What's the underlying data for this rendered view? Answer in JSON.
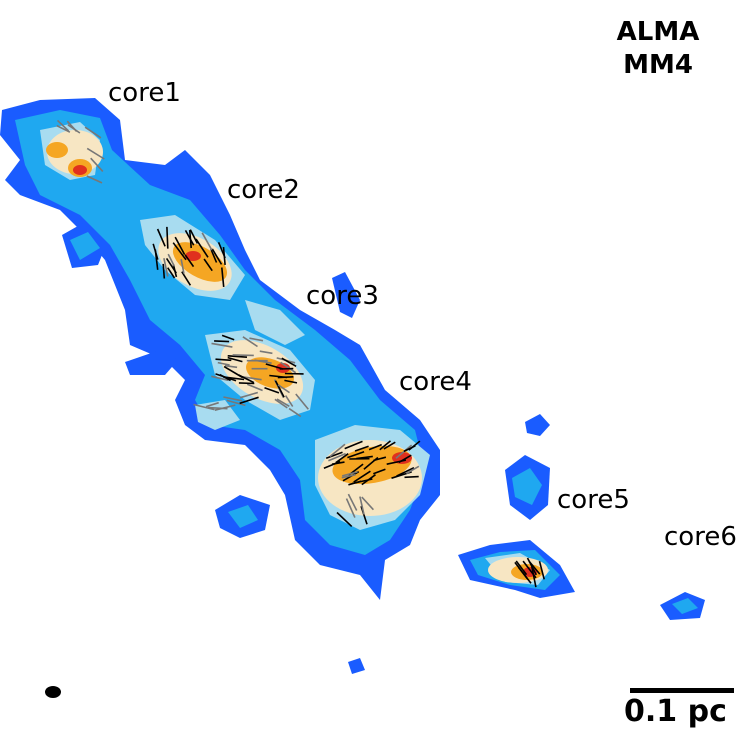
{
  "title": {
    "line1": "ALMA",
    "line2": "MM4"
  },
  "cores": [
    {
      "label": "core1"
    },
    {
      "label": "core2"
    },
    {
      "label": "core3"
    },
    {
      "label": "core4"
    },
    {
      "label": "core5"
    },
    {
      "label": "core6"
    }
  ],
  "scale_bar": {
    "label": "0.1 pc"
  },
  "colors": {
    "outer": "#1a5cff",
    "mid": "#1fa8f0",
    "light": "#a8dcf0",
    "cream": "#f7e6c3",
    "orange": "#f5a623",
    "peak": "#e0301e"
  }
}
